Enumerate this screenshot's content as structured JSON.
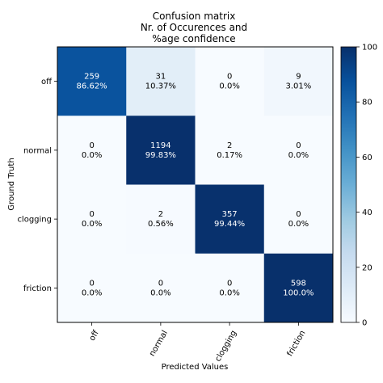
{
  "chart_data": {
    "type": "heatmap",
    "title_lines": [
      "Confusion matrix",
      "Nr. of Occurences and",
      "%age confidence"
    ],
    "xlabel": "Predicted Values",
    "ylabel": "Ground Truth",
    "x_categories": [
      "off",
      "normal",
      "clogging",
      "friction"
    ],
    "y_categories": [
      "off",
      "normal",
      "clogging",
      "friction"
    ],
    "counts": [
      [
        259,
        31,
        0,
        9
      ],
      [
        0,
        1194,
        2,
        0
      ],
      [
        0,
        2,
        357,
        0
      ],
      [
        0,
        0,
        0,
        598
      ]
    ],
    "percent_labels": [
      [
        "86.62%",
        "10.37%",
        "0.0%",
        "3.01%"
      ],
      [
        "0.0%",
        "99.83%",
        "0.17%",
        "0.0%"
      ],
      [
        "0.0%",
        "0.56%",
        "99.44%",
        "0.0%"
      ],
      [
        "0.0%",
        "0.0%",
        "0.0%",
        "100.0%"
      ]
    ],
    "percent_values": [
      [
        86.62,
        10.37,
        0.0,
        3.01
      ],
      [
        0.0,
        99.83,
        0.17,
        0.0
      ],
      [
        0.0,
        0.56,
        99.44,
        0.0
      ],
      [
        0.0,
        0.0,
        0.0,
        100.0
      ]
    ],
    "colorbar": {
      "range": [
        0,
        100
      ],
      "ticks": [
        "0",
        "20",
        "40",
        "60",
        "80",
        "100"
      ],
      "colormap": "Blues"
    },
    "colors": {
      "low": "#f7fbff",
      "mid": "#6baed6",
      "high": "#08306b"
    }
  }
}
